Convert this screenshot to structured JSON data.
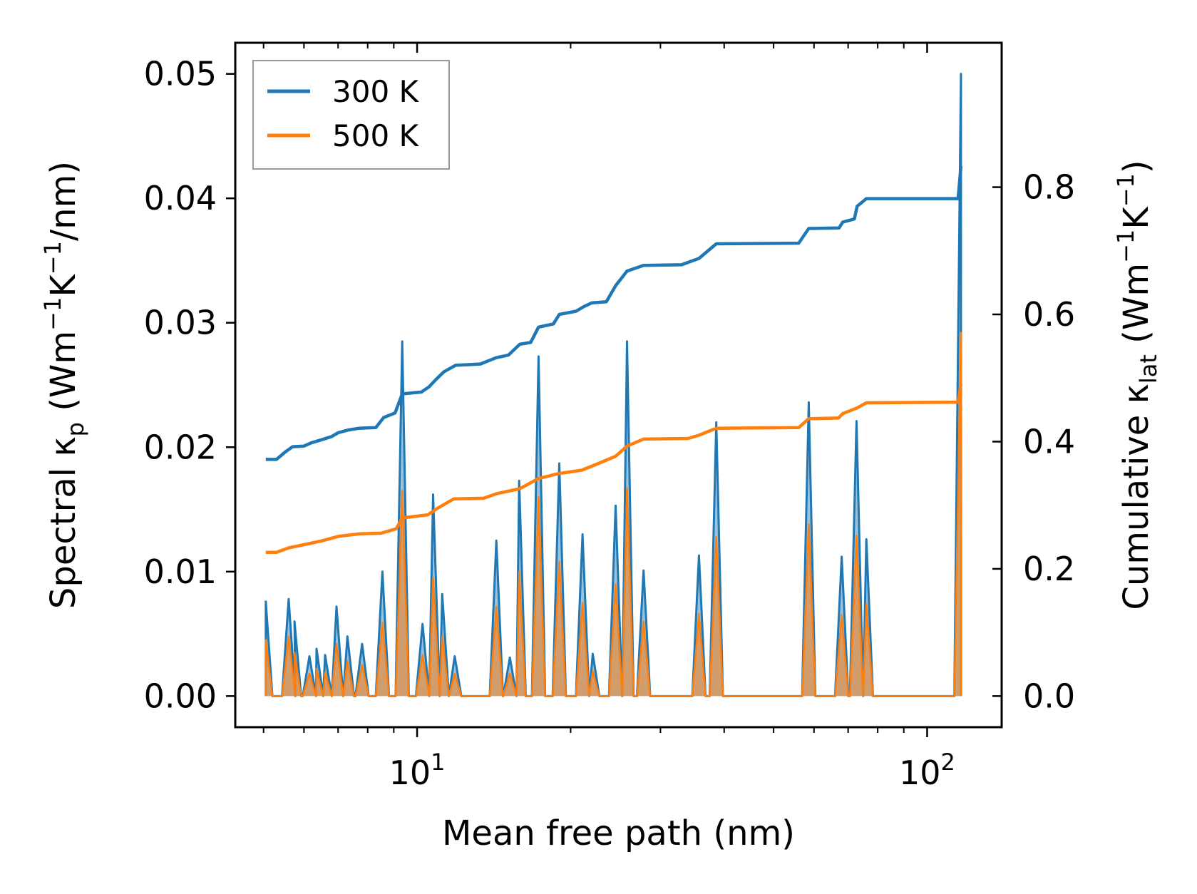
{
  "chart_data": {
    "type": "line",
    "title": "",
    "xlabel": "Mean free path (nm)",
    "xscale": "log",
    "xlim": [
      4.4,
      140
    ],
    "x_ticks": [
      {
        "value": 10,
        "base": "10",
        "exp": "1"
      },
      {
        "value": 100,
        "base": "10",
        "exp": "2"
      }
    ],
    "ylabel_left": {
      "main": "Spectral κ",
      "sub": "p",
      "unit_pre": "(Wm",
      "exp1": "−1",
      "mid": "K",
      "exp2": "−1",
      "unit_post": "/nm)"
    },
    "ylim_left": [
      -0.0025,
      0.0525
    ],
    "y_ticks_left": [
      "0.00",
      "0.01",
      "0.02",
      "0.03",
      "0.04",
      "0.05"
    ],
    "ylabel_right": {
      "main": "Cumulative κ",
      "sub": "lat",
      "unit_pre": "(Wm",
      "exp1": "−1",
      "mid": "K",
      "exp2": "−1",
      "unit_post": ")"
    },
    "ylim_right": [
      -0.0489,
      1.027
    ],
    "y_ticks_right": [
      "0.0",
      "0.2",
      "0.4",
      "0.6",
      "0.8"
    ],
    "legend": {
      "position": "top-left",
      "entries": [
        "300 K",
        "500 K"
      ]
    },
    "colors": {
      "300K": "#1f77b4",
      "500K": "#ff7f0e",
      "frame": "#000000",
      "legend_border": "#999999"
    },
    "spectral_peaks": [
      {
        "x": 5.05,
        "y300": 0.0076,
        "y500": 0.0045
      },
      {
        "x": 5.6,
        "y300": 0.0078,
        "y500": 0.0048
      },
      {
        "x": 5.75,
        "y300": 0.006,
        "y500": 0.0035
      },
      {
        "x": 6.15,
        "y300": 0.0032,
        "y500": 0.0018
      },
      {
        "x": 6.35,
        "y300": 0.0038,
        "y500": 0.0022
      },
      {
        "x": 6.6,
        "y300": 0.0033,
        "y500": 0.0019
      },
      {
        "x": 6.95,
        "y300": 0.0072,
        "y500": 0.0042
      },
      {
        "x": 7.3,
        "y300": 0.0048,
        "y500": 0.0028
      },
      {
        "x": 7.8,
        "y300": 0.0042,
        "y500": 0.0025
      },
      {
        "x": 8.55,
        "y300": 0.01,
        "y500": 0.0059
      },
      {
        "x": 9.35,
        "y300": 0.0285,
        "y500": 0.0165
      },
      {
        "x": 10.25,
        "y300": 0.0058,
        "y500": 0.0033
      },
      {
        "x": 10.75,
        "y300": 0.0162,
        "y500": 0.0095
      },
      {
        "x": 11.2,
        "y300": 0.0082,
        "y500": 0.0048
      },
      {
        "x": 11.85,
        "y300": 0.0032,
        "y500": 0.0018
      },
      {
        "x": 14.3,
        "y300": 0.0125,
        "y500": 0.0072
      },
      {
        "x": 15.2,
        "y300": 0.0031,
        "y500": 0.0018
      },
      {
        "x": 15.85,
        "y300": 0.0173,
        "y500": 0.01
      },
      {
        "x": 17.3,
        "y300": 0.0273,
        "y500": 0.016
      },
      {
        "x": 19.0,
        "y300": 0.0187,
        "y500": 0.0108
      },
      {
        "x": 21.1,
        "y300": 0.013,
        "y500": 0.0075
      },
      {
        "x": 22.1,
        "y300": 0.0034,
        "y500": 0.002
      },
      {
        "x": 24.5,
        "y300": 0.0153,
        "y500": 0.009
      },
      {
        "x": 25.8,
        "y300": 0.0285,
        "y500": 0.0167
      },
      {
        "x": 27.8,
        "y300": 0.0101,
        "y500": 0.006
      },
      {
        "x": 35.7,
        "y300": 0.0113,
        "y500": 0.0066
      },
      {
        "x": 38.6,
        "y300": 0.022,
        "y500": 0.0128
      },
      {
        "x": 58.6,
        "y300": 0.0236,
        "y500": 0.0138
      },
      {
        "x": 68.0,
        "y300": 0.0112,
        "y500": 0.0065
      },
      {
        "x": 72.7,
        "y300": 0.0221,
        "y500": 0.0129
      },
      {
        "x": 76.0,
        "y300": 0.0126,
        "y500": 0.0074
      },
      {
        "x": 116.5,
        "y300": 0.05,
        "y500": 0.0292
      }
    ],
    "series": [
      {
        "name": "300 K",
        "cumulative": [
          [
            5.05,
            0.372
          ],
          [
            5.3,
            0.372
          ],
          [
            5.5,
            0.383
          ],
          [
            5.7,
            0.392
          ],
          [
            6.0,
            0.393
          ],
          [
            6.2,
            0.398
          ],
          [
            6.5,
            0.403
          ],
          [
            6.8,
            0.408
          ],
          [
            7.0,
            0.414
          ],
          [
            7.3,
            0.418
          ],
          [
            7.7,
            0.421
          ],
          [
            8.3,
            0.422
          ],
          [
            8.6,
            0.438
          ],
          [
            9.05,
            0.445
          ],
          [
            9.35,
            0.475
          ],
          [
            10.2,
            0.478
          ],
          [
            10.55,
            0.486
          ],
          [
            10.9,
            0.498
          ],
          [
            11.3,
            0.51
          ],
          [
            11.9,
            0.52
          ],
          [
            13.3,
            0.522
          ],
          [
            14.3,
            0.532
          ],
          [
            15.1,
            0.536
          ],
          [
            15.9,
            0.553
          ],
          [
            16.7,
            0.556
          ],
          [
            17.3,
            0.58
          ],
          [
            18.5,
            0.585
          ],
          [
            19.0,
            0.6
          ],
          [
            20.5,
            0.605
          ],
          [
            21.2,
            0.612
          ],
          [
            22.0,
            0.618
          ],
          [
            23.5,
            0.62
          ],
          [
            24.5,
            0.645
          ],
          [
            25.8,
            0.668
          ],
          [
            27.8,
            0.677
          ],
          [
            33.0,
            0.678
          ],
          [
            35.7,
            0.688
          ],
          [
            38.6,
            0.711
          ],
          [
            56.0,
            0.712
          ],
          [
            58.6,
            0.735
          ],
          [
            67.2,
            0.736
          ],
          [
            68.3,
            0.745
          ],
          [
            72.0,
            0.75
          ],
          [
            72.9,
            0.77
          ],
          [
            76.0,
            0.782
          ],
          [
            115.0,
            0.782
          ],
          [
            116.5,
            0.833
          ]
        ]
      },
      {
        "name": "500 K",
        "cumulative": [
          [
            5.05,
            0.226
          ],
          [
            5.3,
            0.226
          ],
          [
            5.6,
            0.233
          ],
          [
            6.0,
            0.238
          ],
          [
            6.5,
            0.244
          ],
          [
            7.0,
            0.251
          ],
          [
            7.7,
            0.255
          ],
          [
            8.5,
            0.256
          ],
          [
            9.1,
            0.263
          ],
          [
            9.35,
            0.28
          ],
          [
            10.5,
            0.285
          ],
          [
            11.0,
            0.296
          ],
          [
            11.8,
            0.31
          ],
          [
            13.5,
            0.311
          ],
          [
            14.3,
            0.318
          ],
          [
            15.9,
            0.326
          ],
          [
            17.3,
            0.342
          ],
          [
            19.0,
            0.35
          ],
          [
            21.0,
            0.355
          ],
          [
            22.1,
            0.362
          ],
          [
            24.5,
            0.377
          ],
          [
            25.8,
            0.393
          ],
          [
            27.8,
            0.404
          ],
          [
            34.0,
            0.405
          ],
          [
            35.7,
            0.41
          ],
          [
            38.6,
            0.421
          ],
          [
            56.0,
            0.422
          ],
          [
            58.6,
            0.436
          ],
          [
            67.0,
            0.437
          ],
          [
            68.3,
            0.444
          ],
          [
            72.9,
            0.453
          ],
          [
            76.0,
            0.461
          ],
          [
            115.0,
            0.462
          ],
          [
            116.5,
            0.49
          ]
        ]
      }
    ]
  }
}
